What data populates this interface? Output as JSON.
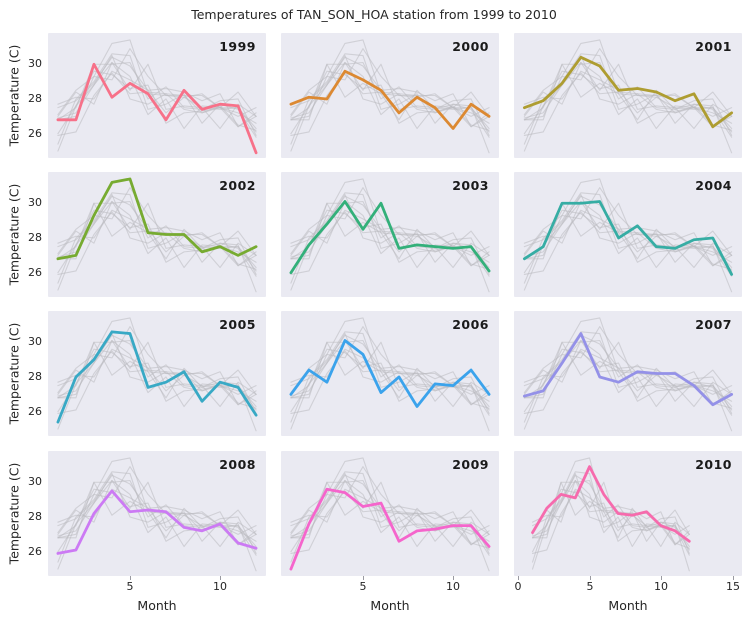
{
  "title": "Temperatures of TAN_SON_HOA station from 1999 to 2010",
  "axes": {
    "ylabel": "Temperature (C)",
    "xlabel": "Month",
    "yticks_display": [
      "30",
      "28",
      "26"
    ],
    "xticks_bottom": [
      "5",
      "10"
    ],
    "xticks_2010": [
      "0",
      "5",
      "10",
      "15"
    ]
  },
  "colors": {
    "figure_background": "#ffffff",
    "panel_background": "#eaeaf2",
    "background_lines": "#b9b9c0",
    "text": "#262626"
  },
  "chart_data": {
    "type": "line",
    "title": "Temperatures of TAN_SON_HOA station from 1999 to 2010",
    "xlabel": "Month",
    "ylabel": "Temperature (C)",
    "x": [
      1,
      2,
      3,
      4,
      5,
      6,
      7,
      8,
      9,
      10,
      11,
      12
    ],
    "ylim": [
      24.6,
      31.8
    ],
    "yticks": [
      26,
      28,
      30
    ],
    "facet_xlim_default": [
      0.45,
      12.55
    ],
    "facet_xlim_last": [
      -0.3,
      15.7
    ],
    "legend": "none",
    "grid": false,
    "facet_layout": "4 rows x 3 cols, one facet per year; all other years drawn as gray background lines in every facet",
    "series": [
      {
        "name": "1999",
        "color": "#f77189",
        "values": [
          26.8,
          26.8,
          30.0,
          28.1,
          28.9,
          28.3,
          26.8,
          28.5,
          27.4,
          27.7,
          27.6,
          24.9
        ]
      },
      {
        "name": "2000",
        "color": "#dc8932",
        "values": [
          27.7,
          28.1,
          28.0,
          29.6,
          29.1,
          28.5,
          27.2,
          28.1,
          27.5,
          26.3,
          27.7,
          27.0
        ]
      },
      {
        "name": "2001",
        "color": "#ae9d31",
        "values": [
          27.5,
          27.9,
          28.9,
          30.4,
          29.9,
          28.5,
          28.6,
          28.4,
          27.9,
          28.3,
          26.4,
          27.2
        ]
      },
      {
        "name": "2002",
        "color": "#77ab31",
        "values": [
          26.8,
          27.0,
          29.3,
          31.2,
          31.4,
          28.3,
          28.2,
          28.2,
          27.2,
          27.5,
          27.0,
          27.5
        ]
      },
      {
        "name": "2003",
        "color": "#33b07a",
        "values": [
          26.0,
          27.6,
          28.8,
          30.1,
          28.5,
          30.0,
          27.4,
          27.6,
          27.5,
          27.4,
          27.5,
          26.1
        ]
      },
      {
        "name": "2004",
        "color": "#36ada4",
        "values": [
          26.8,
          27.5,
          30.0,
          30.0,
          30.1,
          28.0,
          28.7,
          27.5,
          27.4,
          27.9,
          28.0,
          25.9
        ]
      },
      {
        "name": "2005",
        "color": "#38a9c5",
        "values": [
          25.4,
          28.0,
          29.0,
          30.6,
          30.5,
          27.4,
          27.7,
          28.3,
          26.6,
          27.7,
          27.4,
          25.8
        ]
      },
      {
        "name": "2006",
        "color": "#3ba3ec",
        "values": [
          27.0,
          28.4,
          27.7,
          30.1,
          29.3,
          27.1,
          28.0,
          26.3,
          27.6,
          27.5,
          28.4,
          27.0
        ]
      },
      {
        "name": "2007",
        "color": "#9491e8",
        "values": [
          26.9,
          27.2,
          28.8,
          30.5,
          28.0,
          27.7,
          28.3,
          28.2,
          28.2,
          27.5,
          26.4,
          27.0
        ]
      },
      {
        "name": "2008",
        "color": "#cc7af4",
        "values": [
          25.9,
          26.1,
          28.2,
          29.5,
          28.3,
          28.4,
          28.3,
          27.4,
          27.2,
          27.6,
          26.5,
          26.2
        ]
      },
      {
        "name": "2009",
        "color": "#f565cc",
        "values": [
          25.0,
          27.6,
          29.6,
          29.4,
          28.6,
          28.8,
          26.6,
          27.2,
          27.3,
          27.5,
          27.5,
          26.3
        ]
      },
      {
        "name": "2010",
        "color": "#f66bad",
        "values": [
          27.1,
          28.5,
          29.3,
          29.1,
          30.9,
          29.3,
          28.2,
          28.1,
          28.3,
          27.5,
          27.2,
          26.6
        ]
      }
    ]
  }
}
